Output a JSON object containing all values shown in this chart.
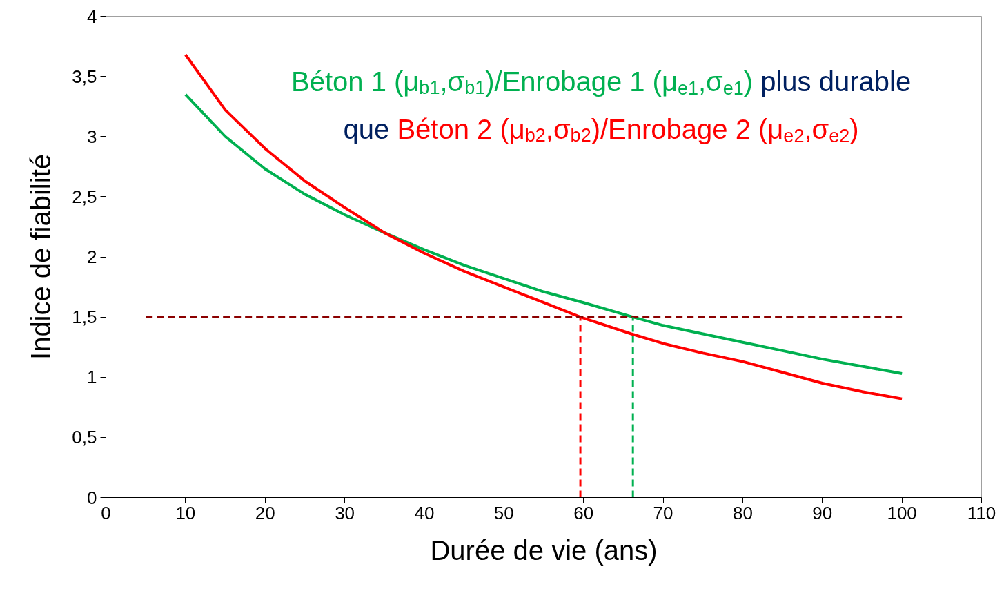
{
  "chart_data": {
    "type": "line",
    "xlabel": "Durée de vie (ans)",
    "ylabel": "Indice de fiabilité",
    "xlim": [
      0,
      110
    ],
    "ylim": [
      0,
      4
    ],
    "xticks": [
      0,
      10,
      20,
      30,
      40,
      50,
      60,
      70,
      80,
      90,
      100,
      110
    ],
    "yticks": [
      0,
      {
        "value": 0.5,
        "label": "0,5"
      },
      1,
      {
        "value": 1.5,
        "label": "1,5"
      },
      2,
      {
        "value": 2.5,
        "label": "2,5"
      },
      3,
      {
        "value": 3.5,
        "label": "3,5"
      },
      4
    ],
    "grid": false,
    "line_style": "solid",
    "marker": "none",
    "annotations": [
      "Béton 1 (μ$_{b1}$,σ$_{b1}$)/Enrobage 1 (μ$_{e1}$,σ$_{e1}$)",
      "plus durable",
      "que",
      "Béton 2 (μ$_{b2}$,σ$_{b2}$)/Enrobage 2 (μ$_{e2}$,σ$_{e2}$)"
    ],
    "series": [
      {
        "color": "#00b050",
        "x": [
          10,
          15,
          20,
          25,
          30,
          35,
          40,
          45,
          50,
          55,
          60,
          66.2,
          70,
          75,
          80,
          85,
          90,
          95,
          100
        ],
        "values": [
          3.35,
          3.0,
          2.73,
          2.52,
          2.35,
          2.2,
          2.06,
          1.93,
          1.82,
          1.71,
          1.62,
          1.5,
          1.43,
          1.36,
          1.29,
          1.22,
          1.15,
          1.09,
          1.03
        ]
      },
      {
        "color": "#ff0000",
        "x": [
          10,
          15,
          20,
          25,
          30,
          35,
          40,
          45,
          50,
          55,
          59.6,
          66,
          70,
          75,
          80,
          85,
          90,
          95,
          100
        ],
        "values": [
          3.68,
          3.22,
          2.9,
          2.63,
          2.41,
          2.2,
          2.03,
          1.88,
          1.75,
          1.62,
          1.5,
          1.36,
          1.28,
          1.2,
          1.13,
          1.04,
          0.95,
          0.88,
          0.82
        ]
      },
      {
        "color": "#8b0000",
        "line_style": "dashed",
        "x": [
          5,
          100
        ],
        "values": [
          1.5,
          1.5
        ]
      },
      {
        "color": "#ff0000",
        "line_style": "dashed",
        "x": [
          59.6,
          59.6
        ],
        "values": [
          0,
          1.5
        ]
      },
      {
        "color": "#00b050",
        "line_style": "dashed",
        "x": [
          66.2,
          66.2
        ],
        "values": [
          0,
          1.5
        ]
      }
    ]
  }
}
